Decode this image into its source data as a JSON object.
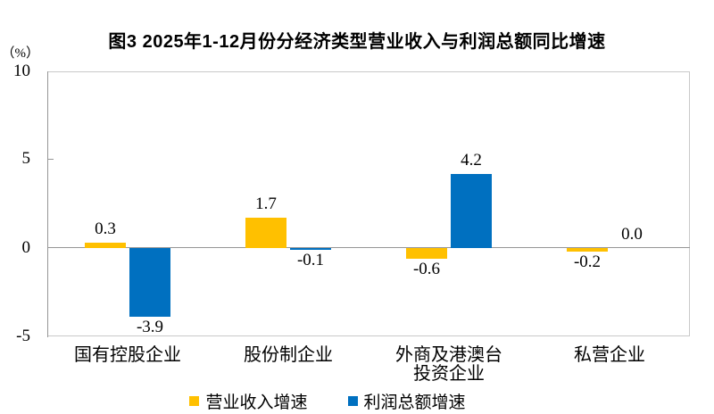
{
  "title": "图3 2025年1-12月份分经济类型营业收入与利润总额同比增速",
  "y_axis": {
    "unit_label": "（%）",
    "ticks": [
      "10",
      "5",
      "0",
      "-5"
    ]
  },
  "chart_data": {
    "type": "bar",
    "title": "图3 2025年1-12月份分经济类型营业收入与利润总额同比增速",
    "categories": [
      "国有控股企业",
      "股份制企业",
      "外商及港澳台投资企业",
      "私营企业"
    ],
    "series": [
      {
        "name": "营业收入增速",
        "color": "#FFC000",
        "values": [
          0.3,
          1.7,
          -0.6,
          -0.2
        ]
      },
      {
        "name": "利润总额增速",
        "color": "#0070C0",
        "values": [
          -3.9,
          -0.1,
          4.2,
          0.0
        ]
      }
    ],
    "ylabel": "（%）",
    "ylim": [
      -5,
      10
    ],
    "yticks": [
      10,
      5,
      0,
      -5
    ],
    "grid": false,
    "data_labels": true,
    "legend_position": "bottom"
  }
}
